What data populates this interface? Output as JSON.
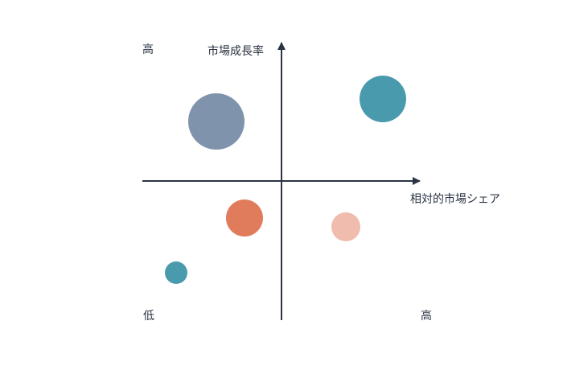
{
  "axes": {
    "y_title": "市場成長率",
    "x_title": "相対的市場シェア",
    "y_high": "高",
    "low": "低",
    "x_high": "高"
  }
}
